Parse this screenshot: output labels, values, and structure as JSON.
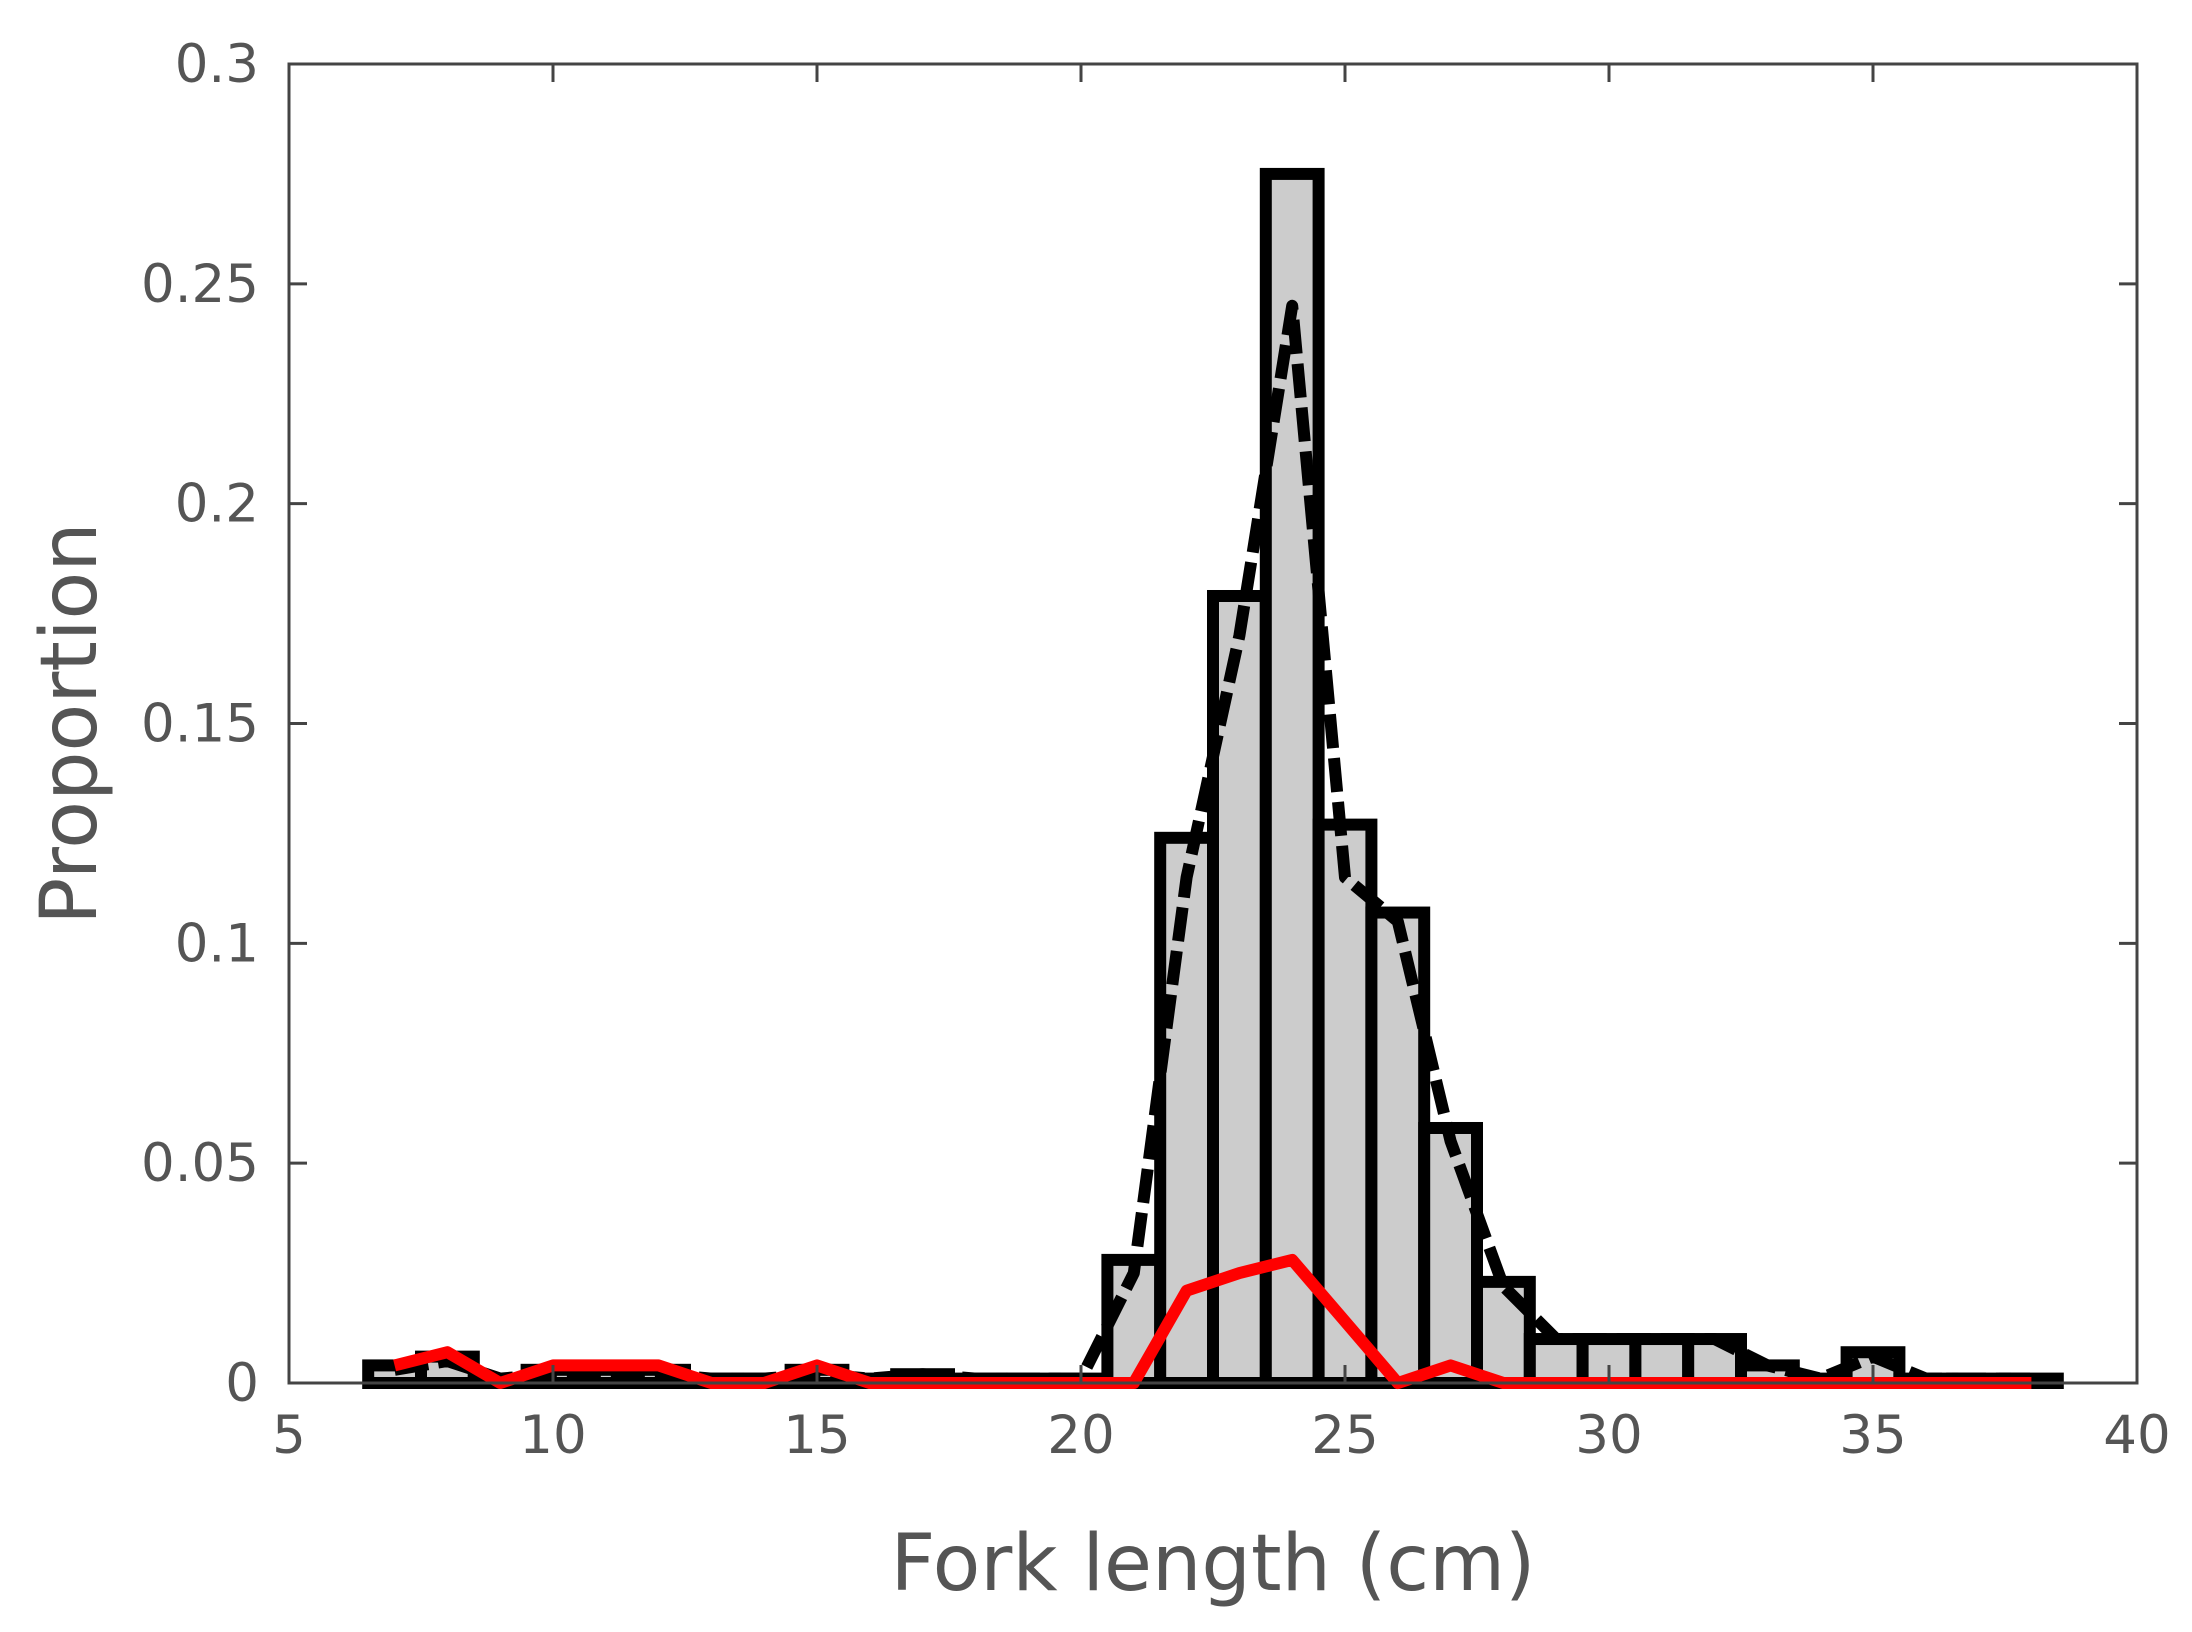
{
  "chart_data": {
    "type": "bar",
    "title": "",
    "xlabel": "Fork length (cm)",
    "ylabel": "Proportion",
    "xlim": [
      5,
      40
    ],
    "ylim": [
      0,
      0.3
    ],
    "xticks": [
      5,
      10,
      15,
      20,
      25,
      30,
      35,
      40
    ],
    "yticks": [
      0,
      0.05,
      0.1,
      0.15,
      0.2,
      0.25,
      0.3
    ],
    "xtick_labels": [
      "5",
      "10",
      "15",
      "20",
      "25",
      "30",
      "35",
      "40"
    ],
    "ytick_labels": [
      "0",
      "0.05",
      "0.1",
      "0.15",
      "0.2",
      "0.25",
      "0.3"
    ],
    "grid": false,
    "legend": "none",
    "bar_width": 1,
    "bars": {
      "x": [
        7,
        8,
        9,
        10,
        11,
        12,
        13,
        14,
        15,
        16,
        17,
        18,
        19,
        20,
        21,
        22,
        23,
        24,
        25,
        26,
        27,
        28,
        29,
        30,
        31,
        32,
        33,
        34,
        35,
        36,
        37,
        38
      ],
      "values": [
        0.004,
        0.006,
        0.001,
        0.003,
        0.003,
        0.003,
        0.001,
        0.001,
        0.003,
        0.001,
        0.002,
        0.001,
        0.001,
        0.001,
        0.028,
        0.124,
        0.179,
        0.275,
        0.127,
        0.107,
        0.058,
        0.023,
        0.01,
        0.01,
        0.01,
        0.01,
        0.004,
        0.001,
        0.007,
        0.001,
        0.001,
        0.001
      ],
      "fill": "#cccccc",
      "edge": "#000000"
    },
    "series": [
      {
        "style": "dashed",
        "color": "#000000",
        "x": [
          7,
          8,
          9,
          10,
          11,
          12,
          13,
          14,
          15,
          16,
          17,
          18,
          19,
          20,
          21,
          22,
          23,
          24,
          25,
          26,
          27,
          28,
          29,
          30,
          31,
          32,
          33,
          34,
          35,
          36,
          37,
          38
        ],
        "values": [
          0.003,
          0.005,
          0.001,
          0.002,
          0.002,
          0.002,
          0.001,
          0.001,
          0.002,
          0.001,
          0.002,
          0.001,
          0.001,
          0.001,
          0.025,
          0.115,
          0.17,
          0.245,
          0.115,
          0.105,
          0.055,
          0.022,
          0.01,
          0.01,
          0.01,
          0.01,
          0.004,
          0.001,
          0.006,
          0.001,
          0.001,
          0.001
        ]
      },
      {
        "style": "solid",
        "color": "#ff0000",
        "x": [
          7,
          8,
          9,
          10,
          11,
          12,
          13,
          14,
          15,
          16,
          17,
          18,
          19,
          20,
          21,
          22,
          23,
          24,
          25,
          26,
          27,
          28,
          29,
          30,
          31,
          32,
          33,
          34,
          35,
          36,
          37,
          38
        ],
        "values": [
          0.004,
          0.007,
          0.0,
          0.004,
          0.004,
          0.004,
          0.0,
          0.0,
          0.004,
          0.0,
          0.0,
          0.0,
          0.0,
          0.0,
          0.0,
          0.021,
          0.025,
          0.028,
          0.014,
          0.0,
          0.004,
          0.0,
          0.0,
          0.0,
          0.0,
          0.0,
          0.0,
          0.0,
          0.0,
          0.0,
          0.0,
          0.0
        ]
      }
    ]
  }
}
